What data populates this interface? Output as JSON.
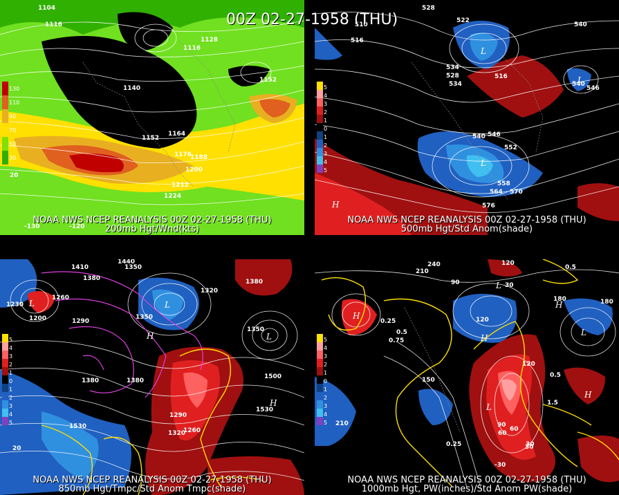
{
  "title": "00Z 02-27-1958 (THU)",
  "panels": [
    {
      "id": "p200",
      "caption1": "NOAA NWS NCEP REANALYSIS 00Z 02-27-1958 (THU)",
      "caption2": "200mb Hgt/Wnd(kts)",
      "colorbar": {
        "labels": [
          "130",
          "110",
          "90",
          "70",
          "50",
          "30"
        ],
        "colors": [
          "#c00000",
          "#e06020",
          "#e8b020",
          "#ffe000",
          "#80e000",
          "#30b000"
        ]
      },
      "contour_labels": [
        "1104",
        "1116",
        "1128",
        "1116",
        "1140",
        "1152",
        "1164",
        "1176",
        "1188",
        "1200",
        "1212",
        "1224",
        "1152"
      ],
      "axis_labels": [
        "-130",
        "-120",
        "20"
      ]
    },
    {
      "id": "p500",
      "caption1": "NOAA NWS NCEP REANALYSIS 00Z 02-27-1958 (THU)",
      "caption2": "500mb Hgt/Std Anom(shade)",
      "colorbar": {
        "labels": [
          "5",
          "4",
          "3",
          "2",
          "1",
          "0",
          "1",
          "2",
          "3",
          "4",
          "5"
        ],
        "colors": [
          "#ffe000",
          "#ffa0a0",
          "#ff6060",
          "#e02020",
          "#a01010",
          "#000000",
          "#104080",
          "#2060c0",
          "#3090e0",
          "#40c0f0",
          "#8040c0"
        ]
      },
      "contour_labels": [
        "528",
        "522",
        "510",
        "516",
        "540",
        "528",
        "534",
        "516",
        "540",
        "546",
        "552",
        "558",
        "564",
        "570",
        "576",
        "540",
        "546",
        "534"
      ]
    },
    {
      "id": "p850",
      "caption1": "NOAA NWS NCEP REANALYSIS 00Z 02-27-1958 (THU)",
      "caption2": "850mb Hgt/Tmpc/Std Anom Tmpc(shade)",
      "colorbar": {
        "labels": [
          "5",
          "4",
          "3",
          "2",
          "1",
          "0",
          "1",
          "2",
          "3",
          "4",
          "5"
        ],
        "colors": [
          "#ffe000",
          "#ffa0a0",
          "#ff6060",
          "#e02020",
          "#a01010",
          "#000000",
          "#104080",
          "#2060c0",
          "#3090e0",
          "#40c0f0",
          "#8040c0"
        ]
      },
      "contour_labels": [
        "1410",
        "1440",
        "1350",
        "1380",
        "1230",
        "1260",
        "1200",
        "1290",
        "1350",
        "1320",
        "1380",
        "1500",
        "1380",
        "1530",
        "1290",
        "1320",
        "1260",
        "1350",
        "1380",
        "1500",
        "1530",
        "20"
      ]
    },
    {
      "id": "p1000",
      "caption1": "NOAA NWS NCEP REANALYSIS 00Z 02-27-1958 (THU)",
      "caption2": "1000mb Hgt, PW(inches)/Std Anom PW(shade)",
      "colorbar": {
        "labels": [
          "5",
          "4",
          "3",
          "2",
          "1",
          "0",
          "1",
          "2",
          "3",
          "4",
          "5"
        ],
        "colors": [
          "#ffe000",
          "#ffa0a0",
          "#ff6060",
          "#e02020",
          "#a01010",
          "#000000",
          "#104080",
          "#2060c0",
          "#3090e0",
          "#40c0f0",
          "#8040c0"
        ]
      },
      "contour_labels": [
        "240",
        "210",
        "120",
        "180",
        "90",
        "30",
        "120",
        "180",
        "150",
        "120",
        "0.25",
        "0.5",
        "210",
        "0.25",
        "60",
        "30",
        "-30",
        "90",
        "60",
        "30",
        "0.5",
        "1.5",
        "0.75",
        "0.5"
      ]
    }
  ]
}
